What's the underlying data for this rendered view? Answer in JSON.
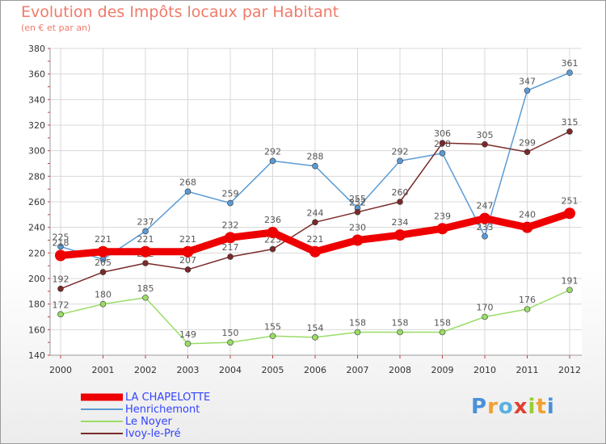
{
  "chart_data": {
    "type": "line",
    "title": "Evolution des Impôts locaux par Habitant",
    "subtitle": "(en € et par an)",
    "x": [
      "2000",
      "2001",
      "2002",
      "2003",
      "2004",
      "2005",
      "2006",
      "2007",
      "2008",
      "2009",
      "2010",
      "2011",
      "2012"
    ],
    "ylim": [
      140,
      380
    ],
    "yticks": [
      "140",
      "160",
      "180",
      "200",
      "220",
      "240",
      "260",
      "280",
      "300",
      "320",
      "340",
      "360",
      "380"
    ],
    "series": [
      {
        "name": "Henrichemont",
        "color": "#5b9bd5",
        "values": [
          225,
          215,
          237,
          268,
          259,
          292,
          288,
          255,
          292,
          298,
          233,
          347,
          361
        ],
        "labels": [
          "225",
          "",
          "237",
          "268",
          "259",
          "292",
          "288",
          "255",
          "292",
          "298",
          "233",
          "347",
          "361"
        ]
      },
      {
        "name": "Le Noyer",
        "color": "#99dd66",
        "values": [
          172,
          180,
          185,
          149,
          150,
          155,
          154,
          158,
          158,
          158,
          170,
          176,
          191
        ],
        "labels": [
          "172",
          "180",
          "185",
          "149",
          "150",
          "155",
          "154",
          "158",
          "158",
          "158",
          "170",
          "176",
          "191"
        ]
      },
      {
        "name": "Ivoy-le-Pré",
        "color": "#7a2a2a",
        "values": [
          192,
          205,
          212,
          207,
          217,
          223,
          244,
          252,
          260,
          306,
          305,
          299,
          315
        ],
        "labels": [
          "192",
          "205",
          "212",
          "207",
          "217",
          "223",
          "244",
          "252",
          "260",
          "306",
          "305",
          "299",
          "315"
        ]
      },
      {
        "name": "LA CHAPELOTTE",
        "color": "#ee0000",
        "values": [
          218,
          221,
          221,
          221,
          232,
          236,
          221,
          230,
          234,
          239,
          247,
          240,
          251
        ],
        "labels": [
          "218",
          "221",
          "221",
          "221",
          "232",
          "236",
          "221",
          "230",
          "234",
          "239",
          "247",
          "240",
          "251"
        ]
      }
    ],
    "legend": [
      {
        "label": "LA CHAPELOTTE",
        "color": "#ee0000",
        "text_color": "#3344ff"
      },
      {
        "label": "Henrichemont",
        "color": "#5b9bd5",
        "text_color": "#3344ff"
      },
      {
        "label": "Le Noyer",
        "color": "#99dd66",
        "text_color": "#3344ff"
      },
      {
        "label": "Ivoy-le-Pré",
        "color": "#7a2a2a",
        "text_color": "#3344ff"
      }
    ]
  },
  "brand": {
    "logo_text": "Proxiti"
  }
}
